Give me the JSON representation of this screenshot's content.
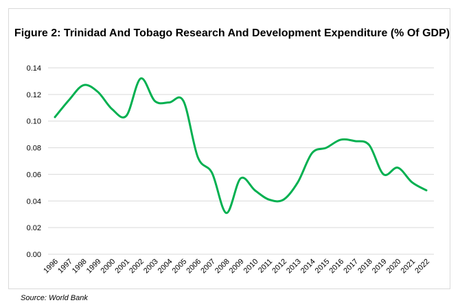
{
  "chart_data": {
    "type": "line",
    "title": "Figure 2: Trinidad And Tobago Research And Development Expenditure (% Of GDP)",
    "xlabel": "",
    "ylabel": "",
    "x": [
      "1996",
      "1997",
      "1998",
      "1999",
      "2000",
      "2001",
      "2002",
      "2003",
      "2004",
      "2005",
      "2006",
      "2007",
      "2008",
      "2009",
      "2010",
      "2011",
      "2012",
      "2013",
      "2014",
      "2015",
      "2016",
      "2017",
      "2018",
      "2019",
      "2020",
      "2021",
      "2022"
    ],
    "series": [
      {
        "values": [
          0.103,
          0.116,
          0.127,
          0.122,
          0.109,
          0.104,
          0.132,
          0.115,
          0.114,
          0.115,
          0.073,
          0.061,
          0.031,
          0.057,
          0.048,
          0.041,
          0.041,
          0.054,
          0.076,
          0.08,
          0.086,
          0.085,
          0.082,
          0.06,
          0.065,
          0.054,
          0.048
        ],
        "color": "#00b050"
      }
    ],
    "yticks": [
      "0.00",
      "0.02",
      "0.04",
      "0.06",
      "0.08",
      "0.10",
      "0.12",
      "0.14"
    ],
    "ylim": [
      0,
      0.14
    ],
    "grid": true,
    "smooth": true,
    "legend": "none"
  },
  "source": "Source: World Bank"
}
